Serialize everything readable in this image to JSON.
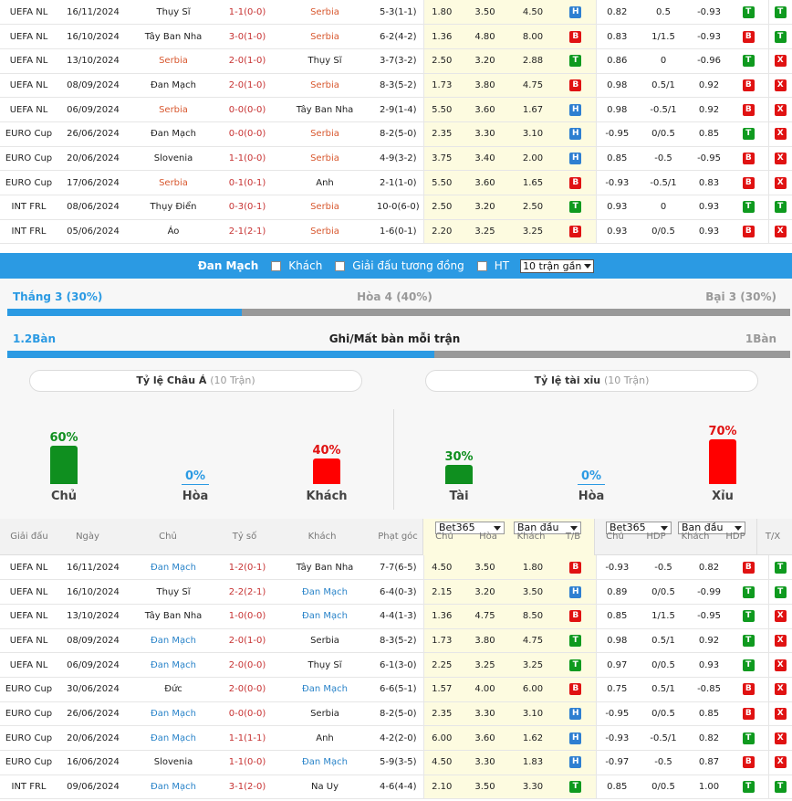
{
  "top_rows": [
    {
      "league": "UEFA NL",
      "date": "16/11/2024",
      "home": "Thụy Sĩ",
      "home_c": "",
      "score": "1-1(0-0)",
      "away": "Serbia",
      "away_c": "red",
      "corner": "5-3(1-1)",
      "o1": "1.80",
      "o2": "3.50",
      "o3": "4.50",
      "tb": "H",
      "h1": "0.82",
      "h2": "0.5",
      "h3": "-0.93",
      "b1": "T",
      "b2": "T"
    },
    {
      "league": "UEFA NL",
      "date": "16/10/2024",
      "home": "Tây Ban Nha",
      "home_c": "",
      "score": "3-0(1-0)",
      "away": "Serbia",
      "away_c": "red",
      "corner": "6-2(4-2)",
      "o1": "1.36",
      "o2": "4.80",
      "o3": "8.00",
      "tb": "B",
      "h1": "0.83",
      "h2": "1/1.5",
      "h3": "-0.93",
      "b1": "B",
      "b2": "T"
    },
    {
      "league": "UEFA NL",
      "date": "13/10/2024",
      "home": "Serbia",
      "home_c": "red",
      "score": "2-0(1-0)",
      "away": "Thụy Sĩ",
      "away_c": "",
      "corner": "3-7(3-2)",
      "o1": "2.50",
      "o2": "3.20",
      "o3": "2.88",
      "tb": "T",
      "h1": "0.86",
      "h2": "0",
      "h3": "-0.96",
      "b1": "T",
      "b2": "X"
    },
    {
      "league": "UEFA NL",
      "date": "08/09/2024",
      "home": "Đan Mạch",
      "home_c": "",
      "score": "2-0(1-0)",
      "away": "Serbia",
      "away_c": "red",
      "corner": "8-3(5-2)",
      "o1": "1.73",
      "o2": "3.80",
      "o3": "4.75",
      "tb": "B",
      "h1": "0.98",
      "h2": "0.5/1",
      "h3": "0.92",
      "b1": "B",
      "b2": "X"
    },
    {
      "league": "UEFA NL",
      "date": "06/09/2024",
      "home": "Serbia",
      "home_c": "red",
      "score": "0-0(0-0)",
      "away": "Tây Ban Nha",
      "away_c": "",
      "corner": "2-9(1-4)",
      "o1": "5.50",
      "o2": "3.60",
      "o3": "1.67",
      "tb": "H",
      "h1": "0.98",
      "h2": "-0.5/1",
      "h3": "0.92",
      "b1": "B",
      "b2": "X"
    },
    {
      "league": "EURO Cup",
      "date": "26/06/2024",
      "home": "Đan Mạch",
      "home_c": "",
      "score": "0-0(0-0)",
      "away": "Serbia",
      "away_c": "red",
      "corner": "8-2(5-0)",
      "o1": "2.35",
      "o2": "3.30",
      "o3": "3.10",
      "tb": "H",
      "h1": "-0.95",
      "h2": "0/0.5",
      "h3": "0.85",
      "b1": "T",
      "b2": "X"
    },
    {
      "league": "EURO Cup",
      "date": "20/06/2024",
      "home": "Slovenia",
      "home_c": "",
      "score": "1-1(0-0)",
      "away": "Serbia",
      "away_c": "red",
      "corner": "4-9(3-2)",
      "o1": "3.75",
      "o2": "3.40",
      "o3": "2.00",
      "tb": "H",
      "h1": "0.85",
      "h2": "-0.5",
      "h3": "-0.95",
      "b1": "B",
      "b2": "X"
    },
    {
      "league": "EURO Cup",
      "date": "17/06/2024",
      "home": "Serbia",
      "home_c": "red",
      "score": "0-1(0-1)",
      "away": "Anh",
      "away_c": "",
      "corner": "2-1(1-0)",
      "o1": "5.50",
      "o2": "3.60",
      "o3": "1.65",
      "tb": "B",
      "h1": "-0.93",
      "h2": "-0.5/1",
      "h3": "0.83",
      "b1": "B",
      "b2": "X"
    },
    {
      "league": "INT FRL",
      "date": "08/06/2024",
      "home": "Thụy Điển",
      "home_c": "",
      "score": "0-3(0-1)",
      "away": "Serbia",
      "away_c": "red",
      "corner": "10-0(6-0)",
      "o1": "2.50",
      "o2": "3.20",
      "o3": "2.50",
      "tb": "T",
      "h1": "0.93",
      "h2": "0",
      "h3": "0.93",
      "b1": "T",
      "b2": "T"
    },
    {
      "league": "INT FRL",
      "date": "05/06/2024",
      "home": "Áo",
      "home_c": "",
      "score": "2-1(2-1)",
      "away": "Serbia",
      "away_c": "red",
      "corner": "1-6(0-1)",
      "o1": "2.20",
      "o2": "3.25",
      "o3": "3.25",
      "tb": "B",
      "h1": "0.93",
      "h2": "0/0.5",
      "h3": "0.93",
      "b1": "B",
      "b2": "X"
    }
  ],
  "filter": {
    "team": "Đan Mạch",
    "opt1": "Khách",
    "opt2": "Giải đấu tương đồng",
    "opt3": "HT",
    "select": "10 trận gần"
  },
  "results": {
    "win": "Thắng 3 (30%)",
    "draw": "Hòa 4 (40%)",
    "loss": "Bại 3 (30%)",
    "win_fraction": 0.3
  },
  "goals": {
    "left": "1.2Bàn",
    "title": "Ghi/Mất bàn mỗi trận",
    "right": "1Bàn",
    "fill_fraction": 0.545
  },
  "asia": {
    "title": "Tỷ lệ Châu Á",
    "sub": "(10 Trận)",
    "home_pct": "60%",
    "draw_pct": "0%",
    "away_pct": "40%",
    "home_lbl": "Chủ",
    "draw_lbl": "Hòa",
    "away_lbl": "Khách",
    "home_val": 0.6,
    "away_val": 0.4
  },
  "ou": {
    "title": "Tỷ lệ tài xỉu",
    "sub": "(10 Trận)",
    "over_pct": "30%",
    "draw_pct": "0%",
    "under_pct": "70%",
    "over_lbl": "Tài",
    "draw_lbl": "Hòa",
    "under_lbl": "Xỉu",
    "over_val": 0.3,
    "under_val": 0.7
  },
  "header": {
    "league": "Giải đấu",
    "date": "Ngày",
    "home": "Chủ",
    "score": "Tỷ số",
    "away": "Khách",
    "corner": "Phạt góc",
    "book1": "Bet365",
    "open1": "Ban đầu",
    "book2": "Bet365",
    "open2": "Ban đầu",
    "c_home": "Chủ",
    "c_draw": "Hòa",
    "c_away": "Khách",
    "c_tb": "T/B",
    "c_home2": "Chủ",
    "c_hdp": "HDP",
    "c_away2": "Khách",
    "c_hdp2": "HDP",
    "c_tx": "T/X"
  },
  "bottom_rows": [
    {
      "league": "UEFA NL",
      "date": "16/11/2024",
      "home": "Đan Mạch",
      "home_c": "blue",
      "score": "1-2(0-1)",
      "away": "Tây Ban Nha",
      "away_c": "",
      "corner": "7-7(6-5)",
      "o1": "4.50",
      "o2": "3.50",
      "o3": "1.80",
      "tb": "B",
      "h1": "-0.93",
      "h2": "-0.5",
      "h3": "0.82",
      "b1": "B",
      "b2": "T"
    },
    {
      "league": "UEFA NL",
      "date": "16/10/2024",
      "home": "Thụy Sĩ",
      "home_c": "",
      "score": "2-2(2-1)",
      "away": "Đan Mạch",
      "away_c": "blue",
      "corner": "6-4(0-3)",
      "o1": "2.15",
      "o2": "3.20",
      "o3": "3.50",
      "tb": "H",
      "h1": "0.89",
      "h2": "0/0.5",
      "h3": "-0.99",
      "b1": "T",
      "b2": "T"
    },
    {
      "league": "UEFA NL",
      "date": "13/10/2024",
      "home": "Tây Ban Nha",
      "home_c": "",
      "score": "1-0(0-0)",
      "away": "Đan Mạch",
      "away_c": "blue",
      "corner": "4-4(1-3)",
      "o1": "1.36",
      "o2": "4.75",
      "o3": "8.50",
      "tb": "B",
      "h1": "0.85",
      "h2": "1/1.5",
      "h3": "-0.95",
      "b1": "T",
      "b2": "X"
    },
    {
      "league": "UEFA NL",
      "date": "08/09/2024",
      "home": "Đan Mạch",
      "home_c": "blue",
      "score": "2-0(1-0)",
      "away": "Serbia",
      "away_c": "",
      "corner": "8-3(5-2)",
      "o1": "1.73",
      "o2": "3.80",
      "o3": "4.75",
      "tb": "T",
      "h1": "0.98",
      "h2": "0.5/1",
      "h3": "0.92",
      "b1": "T",
      "b2": "X"
    },
    {
      "league": "UEFA NL",
      "date": "06/09/2024",
      "home": "Đan Mạch",
      "home_c": "blue",
      "score": "2-0(0-0)",
      "away": "Thụy Sĩ",
      "away_c": "",
      "corner": "6-1(3-0)",
      "o1": "2.25",
      "o2": "3.25",
      "o3": "3.25",
      "tb": "T",
      "h1": "0.97",
      "h2": "0/0.5",
      "h3": "0.93",
      "b1": "T",
      "b2": "X"
    },
    {
      "league": "EURO Cup",
      "date": "30/06/2024",
      "home": "Đức",
      "home_c": "",
      "score": "2-0(0-0)",
      "away": "Đan Mạch",
      "away_c": "blue",
      "corner": "6-6(5-1)",
      "o1": "1.57",
      "o2": "4.00",
      "o3": "6.00",
      "tb": "B",
      "h1": "0.75",
      "h2": "0.5/1",
      "h3": "-0.85",
      "b1": "B",
      "b2": "X"
    },
    {
      "league": "EURO Cup",
      "date": "26/06/2024",
      "home": "Đan Mạch",
      "home_c": "blue",
      "score": "0-0(0-0)",
      "away": "Serbia",
      "away_c": "",
      "corner": "8-2(5-0)",
      "o1": "2.35",
      "o2": "3.30",
      "o3": "3.10",
      "tb": "H",
      "h1": "-0.95",
      "h2": "0/0.5",
      "h3": "0.85",
      "b1": "B",
      "b2": "X"
    },
    {
      "league": "EURO Cup",
      "date": "20/06/2024",
      "home": "Đan Mạch",
      "home_c": "blue",
      "score": "1-1(1-1)",
      "away": "Anh",
      "away_c": "",
      "corner": "4-2(2-0)",
      "o1": "6.00",
      "o2": "3.60",
      "o3": "1.62",
      "tb": "H",
      "h1": "-0.93",
      "h2": "-0.5/1",
      "h3": "0.82",
      "b1": "T",
      "b2": "X"
    },
    {
      "league": "EURO Cup",
      "date": "16/06/2024",
      "home": "Slovenia",
      "home_c": "",
      "score": "1-1(0-0)",
      "away": "Đan Mạch",
      "away_c": "blue",
      "corner": "5-9(3-5)",
      "o1": "4.50",
      "o2": "3.30",
      "o3": "1.83",
      "tb": "H",
      "h1": "-0.97",
      "h2": "-0.5",
      "h3": "0.87",
      "b1": "B",
      "b2": "X"
    },
    {
      "league": "INT FRL",
      "date": "09/06/2024",
      "home": "Đan Mạch",
      "home_c": "blue",
      "score": "3-1(2-0)",
      "away": "Na Uy",
      "away_c": "",
      "corner": "4-6(4-4)",
      "o1": "2.10",
      "o2": "3.50",
      "o3": "3.30",
      "tb": "T",
      "h1": "0.85",
      "h2": "0/0.5",
      "h3": "1.00",
      "b1": "T",
      "b2": "T"
    }
  ]
}
